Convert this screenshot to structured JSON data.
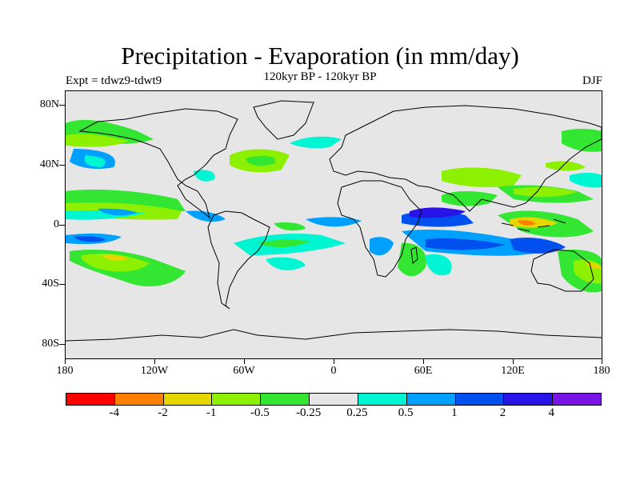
{
  "title": "Precipitation - Evaporation (in mm/day)",
  "subtitle": "120kyr BP - 120kyr BP",
  "experiment": "Expt = tdwz9-tdwt9",
  "season": "DJF",
  "map": {
    "projection": "cylindrical equidistant",
    "lon_range": [
      -180,
      180
    ],
    "lat_range": [
      -90,
      90
    ],
    "lat_labels": [
      "80N",
      "40N",
      "0",
      "40S",
      "80S"
    ],
    "lon_labels": [
      "180",
      "120W",
      "60W",
      "0",
      "60E",
      "120E",
      "180"
    ],
    "background_color": "#e6e6e6"
  },
  "colorbar": {
    "colors": [
      "#ff0000",
      "#ff8000",
      "#e6d600",
      "#8cf000",
      "#32e632",
      "#e6e6e6",
      "#00f5d2",
      "#00a0ff",
      "#0050f0",
      "#2814e6",
      "#7814e6"
    ],
    "labels": [
      "-4",
      "-2",
      "-1",
      "-0.5",
      "-0.25",
      "0.25",
      "0.5",
      "1",
      "2",
      "4"
    ]
  }
}
